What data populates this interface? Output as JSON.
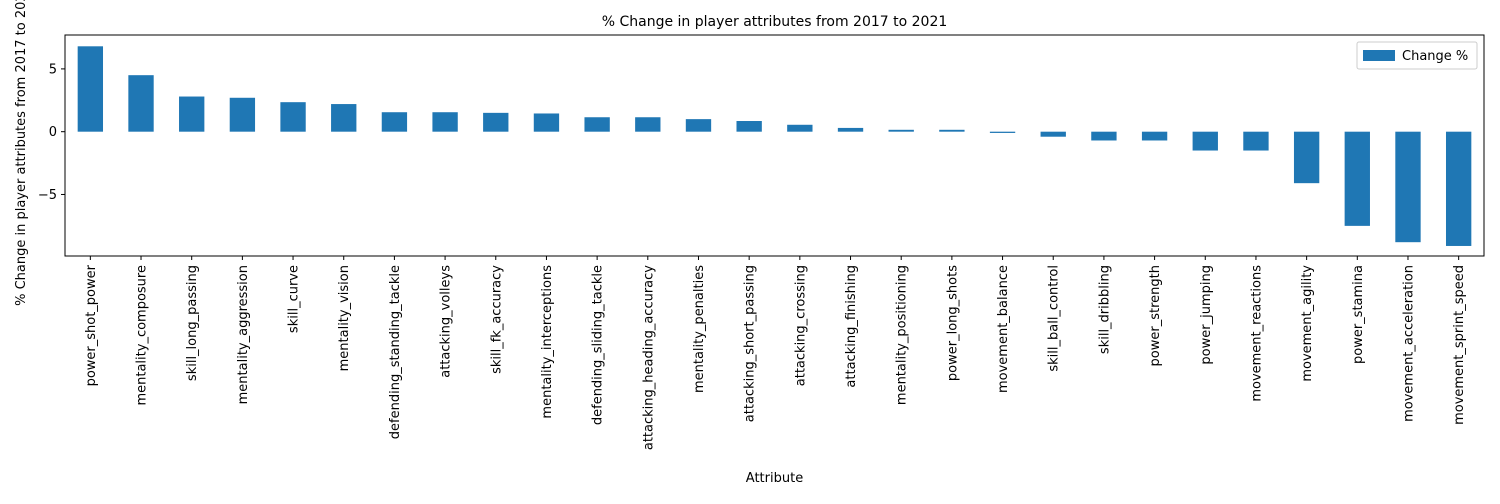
{
  "chart_data": {
    "type": "bar",
    "title": "% Change in player attributes from 2017 to 2021",
    "xlabel": "Attribute",
    "ylabel": "% Change in player attributes from 2017 to 2021",
    "ylim": [
      -9.9,
      7.7
    ],
    "yticks": [
      -5,
      0,
      5
    ],
    "ytick_labels": [
      "−5",
      "0",
      "5"
    ],
    "grid": false,
    "legend_position": "top-right",
    "bar_color": "#1f77b4",
    "categories": [
      "power_shot_power",
      "mentality_composure",
      "skill_long_passing",
      "mentality_aggression",
      "skill_curve",
      "mentality_vision",
      "defending_standing_tackle",
      "attacking_volleys",
      "skill_fk_accuracy",
      "mentality_interceptions",
      "defending_sliding_tackle",
      "attacking_heading_accuracy",
      "mentality_penalties",
      "attacking_short_passing",
      "attacking_crossing",
      "attacking_finishing",
      "mentality_positioning",
      "power_long_shots",
      "movement_balance",
      "skill_ball_control",
      "skill_dribbling",
      "power_strength",
      "power_jumping",
      "movement_reactions",
      "movement_agility",
      "power_stamina",
      "movement_acceleration",
      "movement_sprint_speed"
    ],
    "series": [
      {
        "name": "Change %",
        "values": [
          6.8,
          4.5,
          2.8,
          2.7,
          2.35,
          2.2,
          1.55,
          1.55,
          1.5,
          1.45,
          1.15,
          1.15,
          1.0,
          0.85,
          0.55,
          0.3,
          0.15,
          0.15,
          -0.1,
          -0.4,
          -0.7,
          -0.7,
          -1.5,
          -1.5,
          -4.1,
          -7.5,
          -8.8,
          -9.1
        ]
      }
    ]
  }
}
